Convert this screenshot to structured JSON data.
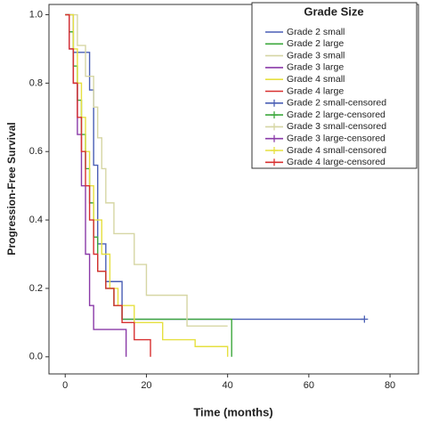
{
  "chart_data": {
    "type": "step",
    "x_label": "Time (months)",
    "y_label": "Progression-Free Survival",
    "legend_title": "Grade Size",
    "legend": "top-right",
    "xlim": [
      -4,
      87
    ],
    "ylim": [
      -0.05,
      1.03
    ],
    "xticks": [
      0,
      20,
      40,
      60,
      80
    ],
    "yticks": [
      {
        "value": 0,
        "label": "0.0"
      },
      {
        "value": 0.2,
        "label": "0.2"
      },
      {
        "value": 0.4,
        "label": "0.4"
      },
      {
        "value": 0.6,
        "label": "0.6"
      },
      {
        "value": 0.8,
        "label": "0.8"
      },
      {
        "value": 1,
        "label": "1.0"
      }
    ],
    "series": [
      {
        "name": "Grade 2 small",
        "color": "#4a5fb5",
        "x": [
          0,
          2,
          6,
          7,
          8,
          10,
          14,
          73.7
        ],
        "values": [
          1,
          0.89,
          0.78,
          0.56,
          0.33,
          0.22,
          0.11,
          0.11
        ]
      },
      {
        "name": "Grade 2 large",
        "color": "#3da83d",
        "x": [
          0,
          1,
          2,
          3,
          4,
          5,
          6,
          7,
          8,
          10,
          12,
          14,
          41
        ],
        "values": [
          1,
          0.95,
          0.85,
          0.75,
          0.65,
          0.55,
          0.45,
          0.35,
          0.25,
          0.2,
          0.15,
          0.11,
          0
        ]
      },
      {
        "name": "Grade 3 small",
        "color": "#d6d6a4",
        "x": [
          0,
          3,
          5,
          7,
          8,
          9,
          10,
          12,
          17,
          20,
          30,
          40
        ],
        "values": [
          1,
          0.91,
          0.82,
          0.73,
          0.64,
          0.55,
          0.45,
          0.36,
          0.27,
          0.18,
          0.09,
          0.09
        ]
      },
      {
        "name": "Grade 3 large",
        "color": "#8a3aa8",
        "x": [
          0,
          1,
          2,
          3,
          4,
          5,
          6,
          7,
          15
        ],
        "values": [
          1,
          0.9,
          0.8,
          0.65,
          0.5,
          0.3,
          0.15,
          0.08,
          0
        ]
      },
      {
        "name": "Grade 4 small",
        "color": "#e6e040",
        "x": [
          0,
          2,
          3,
          4,
          5,
          6,
          7,
          9,
          11,
          13,
          17,
          24,
          32,
          40
        ],
        "values": [
          1,
          0.9,
          0.8,
          0.7,
          0.6,
          0.5,
          0.4,
          0.3,
          0.2,
          0.15,
          0.1,
          0.05,
          0.03,
          0
        ]
      },
      {
        "name": "Grade 4 large",
        "color": "#d83030",
        "x": [
          0,
          1,
          2,
          3,
          4,
          5,
          6,
          7,
          8,
          10,
          12,
          14,
          17,
          21
        ],
        "values": [
          1,
          0.9,
          0.8,
          0.7,
          0.6,
          0.5,
          0.4,
          0.3,
          0.25,
          0.2,
          0.15,
          0.1,
          0.05,
          0
        ]
      },
      {
        "name": "Grade 2 small-censored",
        "color": "#4a5fb5",
        "censored": true,
        "x": [
          73.7
        ],
        "values": [
          0.11
        ]
      },
      {
        "name": "Grade 2 large-censored",
        "color": "#3da83d",
        "censored": true,
        "x": [],
        "values": []
      },
      {
        "name": "Grade 3 small-censored",
        "color": "#d6d6a4",
        "censored": true,
        "x": [],
        "values": []
      },
      {
        "name": "Grade 3 large-censored",
        "color": "#8a3aa8",
        "censored": true,
        "x": [],
        "values": []
      },
      {
        "name": "Grade 4 small-censored",
        "color": "#e6e040",
        "censored": true,
        "x": [],
        "values": []
      },
      {
        "name": "Grade 4 large-censored",
        "color": "#d83030",
        "censored": true,
        "x": [],
        "values": []
      }
    ]
  }
}
